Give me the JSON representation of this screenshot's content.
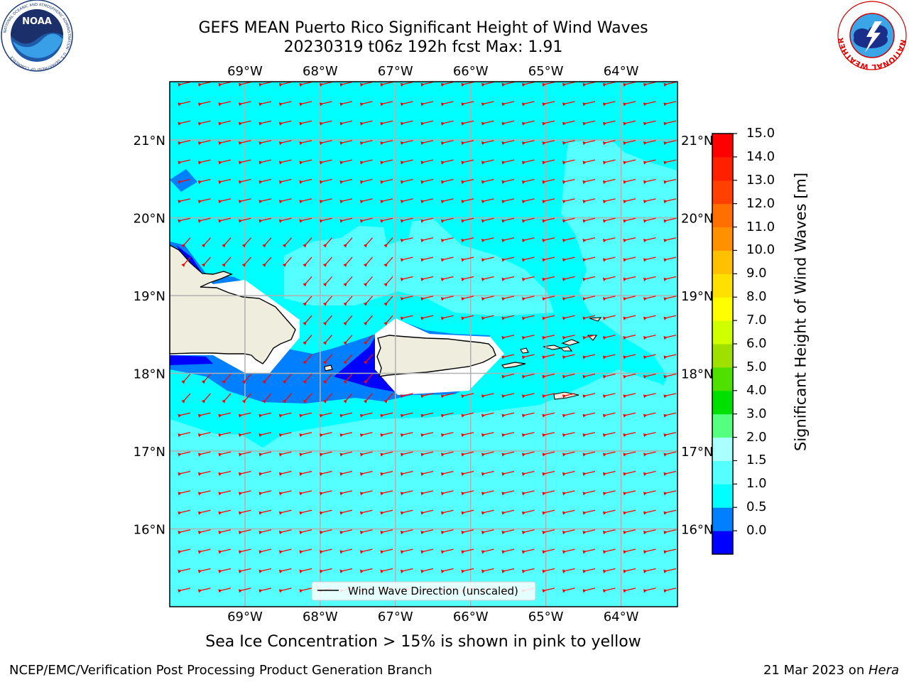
{
  "title_line1": "GEFS MEAN Puerto Rico Significant Height of Wind Waves",
  "title_line2": "20230319 t06z 192h fcst   Max: 1.91",
  "logos": {
    "noaa_text": "NOAA",
    "noaa_ring": "NATIONAL OCEANIC AND ATMOSPHERIC ADMINISTRATION · U.S. DEPARTMENT OF COMMERCE",
    "nws_ring": "NATIONAL WEATHER SERVICE"
  },
  "map": {
    "lon_labels": [
      "69°W",
      "68°W",
      "67°W",
      "66°W",
      "65°W",
      "64°W"
    ],
    "lat_labels": [
      "21°N",
      "20°N",
      "19°N",
      "18°N",
      "17°N",
      "16°N"
    ],
    "lon_range": [
      -70,
      -63.25
    ],
    "lat_range": [
      15,
      21.75
    ],
    "legend_label": "Wind Wave Direction (unscaled)",
    "arrow_color": "#ff0000",
    "land_color": "#efedde",
    "grid_color": "#b0b0b0"
  },
  "colorbar": {
    "title": "Significant Height of Wind Waves [m]",
    "ticks": [
      "15.0",
      "14.0",
      "13.0",
      "12.0",
      "11.0",
      "10.0",
      "9.0",
      "8.0",
      "7.0",
      "6.0",
      "5.0",
      "4.0",
      "3.0",
      "2.0",
      "1.5",
      "1.0",
      "0.5",
      "0.0"
    ],
    "colors": [
      "#0000ff",
      "#0080ff",
      "#00ffff",
      "#55ffff",
      "#aaffff",
      "#55ff80",
      "#00e000",
      "#50e000",
      "#a0e000",
      "#d0ff00",
      "#ffff00",
      "#ffe000",
      "#ffc000",
      "#ff9000",
      "#ff7000",
      "#ff4000",
      "#ff2000",
      "#ff0000"
    ]
  },
  "note": "Sea Ice Concentration > 15% is shown in pink to yellow",
  "footer_left": "NCEP/EMC/Verification Post Processing Product Generation Branch",
  "footer_right_date": "21 Mar 2023 on ",
  "footer_right_host": "Hera"
}
